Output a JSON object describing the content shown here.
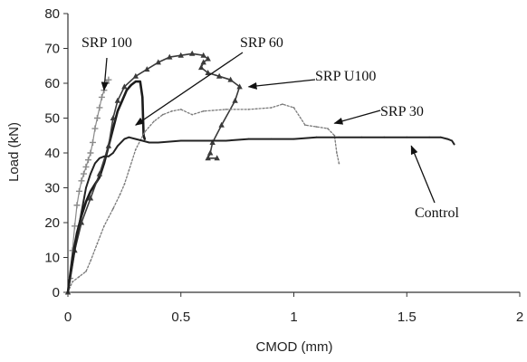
{
  "chart_data": {
    "type": "line",
    "xlabel": "CMOD (mm)",
    "ylabel": "Load (kN)",
    "xlim": [
      0,
      2
    ],
    "ylim": [
      0,
      80
    ],
    "x_ticks": [
      "0",
      "0.5",
      "1",
      "1.5",
      "2"
    ],
    "y_ticks": [
      "0",
      "10",
      "20",
      "30",
      "40",
      "50",
      "60",
      "70",
      "80"
    ],
    "grid": false,
    "legend": "none",
    "series": [
      {
        "name": "SRP 100",
        "style": "grey-plus",
        "points": [
          [
            0,
            0
          ],
          [
            0.01,
            4
          ],
          [
            0.02,
            12
          ],
          [
            0.03,
            19
          ],
          [
            0.04,
            25
          ],
          [
            0.05,
            29
          ],
          [
            0.06,
            32
          ],
          [
            0.07,
            34
          ],
          [
            0.08,
            36
          ],
          [
            0.09,
            38
          ],
          [
            0.1,
            40
          ],
          [
            0.11,
            43
          ],
          [
            0.12,
            47
          ],
          [
            0.13,
            50
          ],
          [
            0.14,
            53
          ],
          [
            0.15,
            56
          ],
          [
            0.16,
            58
          ],
          [
            0.17,
            60
          ],
          [
            0.18,
            61
          ]
        ]
      },
      {
        "name": "SRP 60",
        "style": "thick-dark",
        "points": [
          [
            0,
            0
          ],
          [
            0.02,
            10
          ],
          [
            0.04,
            17
          ],
          [
            0.06,
            22
          ],
          [
            0.08,
            26
          ],
          [
            0.1,
            29
          ],
          [
            0.12,
            31
          ],
          [
            0.14,
            33
          ],
          [
            0.16,
            37
          ],
          [
            0.18,
            42
          ],
          [
            0.2,
            47
          ],
          [
            0.22,
            52
          ],
          [
            0.24,
            55
          ],
          [
            0.26,
            58
          ],
          [
            0.28,
            59.5
          ],
          [
            0.3,
            60.5
          ],
          [
            0.32,
            60.5
          ],
          [
            0.33,
            56
          ],
          [
            0.335,
            45
          ],
          [
            0.34,
            44
          ]
        ]
      },
      {
        "name": "SRP U100",
        "style": "dark-triangle",
        "points": [
          [
            0,
            0
          ],
          [
            0.03,
            12
          ],
          [
            0.06,
            20
          ],
          [
            0.1,
            27
          ],
          [
            0.14,
            34
          ],
          [
            0.18,
            42
          ],
          [
            0.2,
            50
          ],
          [
            0.22,
            55
          ],
          [
            0.25,
            59
          ],
          [
            0.3,
            62
          ],
          [
            0.35,
            64
          ],
          [
            0.4,
            66
          ],
          [
            0.45,
            67.5
          ],
          [
            0.5,
            68
          ],
          [
            0.55,
            68.5
          ],
          [
            0.6,
            68
          ],
          [
            0.62,
            67
          ],
          [
            0.6,
            66
          ],
          [
            0.59,
            64.5
          ],
          [
            0.62,
            63
          ],
          [
            0.67,
            62
          ],
          [
            0.72,
            61
          ],
          [
            0.76,
            59
          ],
          [
            0.74,
            55
          ],
          [
            0.68,
            48
          ],
          [
            0.64,
            43
          ],
          [
            0.63,
            40
          ],
          [
            0.62,
            38.5
          ],
          [
            0.66,
            38.5
          ]
        ]
      },
      {
        "name": "SRP 30",
        "style": "grey-dotted",
        "points": [
          [
            0,
            0
          ],
          [
            0.02,
            3
          ],
          [
            0.05,
            4.5
          ],
          [
            0.08,
            6
          ],
          [
            0.1,
            9
          ],
          [
            0.13,
            14
          ],
          [
            0.16,
            19
          ],
          [
            0.2,
            24
          ],
          [
            0.23,
            28
          ],
          [
            0.25,
            31
          ],
          [
            0.27,
            35
          ],
          [
            0.3,
            41
          ],
          [
            0.34,
            46
          ],
          [
            0.38,
            49
          ],
          [
            0.42,
            51
          ],
          [
            0.46,
            52
          ],
          [
            0.5,
            52.5
          ],
          [
            0.55,
            51
          ],
          [
            0.6,
            52
          ],
          [
            0.7,
            52.5
          ],
          [
            0.8,
            52.5
          ],
          [
            0.9,
            53
          ],
          [
            0.95,
            54
          ],
          [
            1,
            53
          ],
          [
            1.05,
            48
          ],
          [
            1.1,
            47.5
          ],
          [
            1.15,
            47
          ],
          [
            1.18,
            45
          ],
          [
            1.19,
            40
          ],
          [
            1.2,
            37
          ]
        ]
      },
      {
        "name": "Control",
        "style": "solid-dark",
        "points": [
          [
            0,
            0
          ],
          [
            0.02,
            8
          ],
          [
            0.04,
            16
          ],
          [
            0.06,
            23
          ],
          [
            0.08,
            30
          ],
          [
            0.1,
            34
          ],
          [
            0.12,
            37
          ],
          [
            0.14,
            38.5
          ],
          [
            0.16,
            39
          ],
          [
            0.18,
            39
          ],
          [
            0.2,
            40
          ],
          [
            0.22,
            42
          ],
          [
            0.25,
            44
          ],
          [
            0.27,
            44.5
          ],
          [
            0.3,
            44
          ],
          [
            0.33,
            43.5
          ],
          [
            0.36,
            43
          ],
          [
            0.4,
            43
          ],
          [
            0.5,
            43.5
          ],
          [
            0.6,
            43.5
          ],
          [
            0.7,
            43.5
          ],
          [
            0.8,
            44
          ],
          [
            0.9,
            44
          ],
          [
            1,
            44
          ],
          [
            1.1,
            44.5
          ],
          [
            1.2,
            44.5
          ],
          [
            1.3,
            44.5
          ],
          [
            1.4,
            44.5
          ],
          [
            1.5,
            44.5
          ],
          [
            1.6,
            44.5
          ],
          [
            1.65,
            44.5
          ],
          [
            1.68,
            44
          ],
          [
            1.7,
            43.5
          ],
          [
            1.71,
            42.5
          ]
        ]
      }
    ],
    "annotations": [
      {
        "text": "SRP 100",
        "target": [
          0.16,
          58
        ]
      },
      {
        "text": "SRP 60",
        "target": [
          0.3,
          48
        ]
      },
      {
        "text": "SRP U100",
        "target": [
          0.8,
          59
        ]
      },
      {
        "text": "SRP 30",
        "target": [
          1.18,
          48.5
        ]
      },
      {
        "text": "Control",
        "target": [
          1.52,
          42
        ]
      }
    ]
  }
}
